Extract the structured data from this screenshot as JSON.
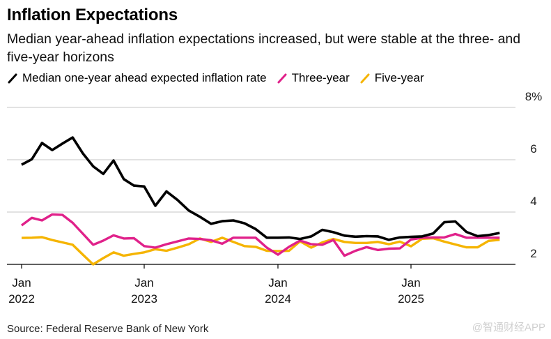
{
  "header": {
    "title": "Inflation Expectations",
    "subtitle": "Median year-ahead inflation expectations increased, but were stable at the three- and five-year horizons"
  },
  "footer": {
    "source": "Source: Federal Reserve Bank of New York",
    "watermark": "@智通财经APP"
  },
  "chart_data": {
    "type": "line",
    "title": "Inflation Expectations",
    "subtitle": "Median year-ahead inflation expectations increased, but were stable at the three- and five-year horizons",
    "xlabel": "",
    "ylabel": "",
    "x_start": "2022-01",
    "x_frequency": "monthly",
    "x_end": "2025-09",
    "ylim": [
      2,
      8
    ],
    "y_unit": "%",
    "y_ticks": [
      {
        "value": 8,
        "label": "8%"
      },
      {
        "value": 6,
        "label": "6"
      },
      {
        "value": 4,
        "label": "4"
      },
      {
        "value": 2,
        "label": "2"
      }
    ],
    "x_ticks": [
      {
        "month": "2022-01",
        "line1": "Jan",
        "line2": "2022"
      },
      {
        "month": "2023-01",
        "line1": "Jan",
        "line2": "2023"
      },
      {
        "month": "2024-01",
        "line1": "Jan",
        "line2": "2024"
      },
      {
        "month": "2025-01",
        "line1": "Jan",
        "line2": "2025"
      }
    ],
    "grid": true,
    "legend_position": "top-left",
    "series": [
      {
        "name": "Median one-year ahead expected inflation rate",
        "color": "#000000",
        "values": [
          5.81,
          6.02,
          6.64,
          6.37,
          6.62,
          6.85,
          6.24,
          5.75,
          5.46,
          5.97,
          5.26,
          5.01,
          4.98,
          4.24,
          4.79,
          4.46,
          4.06,
          3.82,
          3.55,
          3.65,
          3.68,
          3.57,
          3.35,
          3.02,
          3.02,
          3.03,
          2.97,
          3.07,
          3.32,
          3.23,
          3.1,
          3.06,
          3.08,
          3.07,
          2.94,
          3.03,
          3.05,
          3.07,
          3.18,
          3.61,
          3.64,
          3.24,
          3.08,
          3.12,
          3.2
        ]
      },
      {
        "name": "Three-year",
        "color": "#e0218a",
        "values": [
          3.49,
          3.78,
          3.68,
          3.91,
          3.89,
          3.59,
          3.17,
          2.75,
          2.91,
          3.11,
          2.99,
          3.0,
          2.7,
          2.64,
          2.77,
          2.88,
          2.99,
          2.97,
          2.92,
          2.79,
          3.02,
          3.02,
          3.02,
          2.64,
          2.37,
          2.67,
          2.91,
          2.77,
          2.75,
          2.93,
          2.33,
          2.52,
          2.66,
          2.55,
          2.6,
          2.61,
          2.95,
          3.02,
          3.03,
          3.03,
          3.16,
          3.02,
          3.02,
          3.02,
          3.02
        ]
      },
      {
        "name": "Five-year",
        "color": "#f5b400",
        "values": [
          3.01,
          3.02,
          3.04,
          2.93,
          2.84,
          2.75,
          2.37,
          2.0,
          2.24,
          2.46,
          2.33,
          2.4,
          2.46,
          2.58,
          2.52,
          2.64,
          2.77,
          2.99,
          2.86,
          3.02,
          2.86,
          2.7,
          2.67,
          2.52,
          2.51,
          2.52,
          2.88,
          2.64,
          2.84,
          2.97,
          2.86,
          2.82,
          2.82,
          2.86,
          2.77,
          2.87,
          2.69,
          2.98,
          3.0,
          2.87,
          2.76,
          2.65,
          2.65,
          2.9,
          2.94
        ]
      }
    ]
  }
}
